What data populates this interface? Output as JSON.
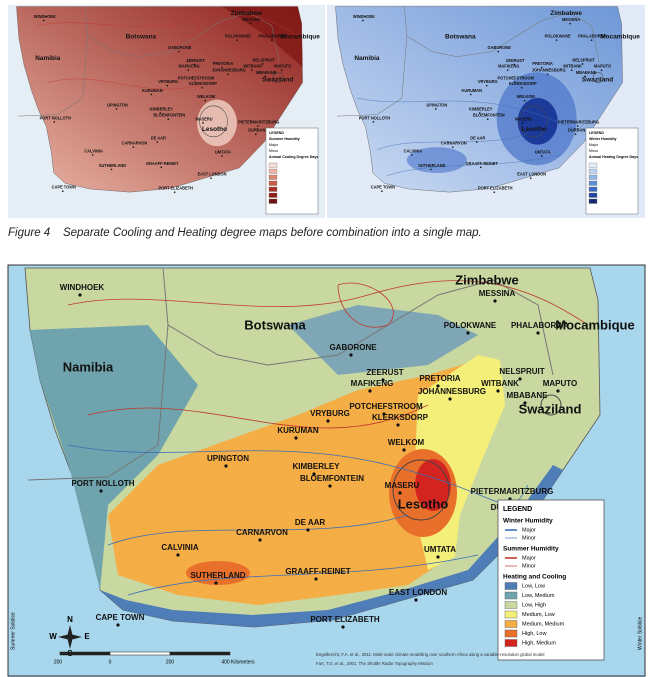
{
  "top_maps": {
    "left": {
      "legend": [
        "LEGEND",
        "Summer Humidity",
        "Major",
        "Minor",
        "Annual Cooling Degree Days"
      ]
    },
    "right": {
      "legend": [
        "LEGEND",
        "Winter Humidity",
        "Major",
        "Minor",
        "Annual Heating Degree Days"
      ]
    }
  },
  "caption": "Figure 4    Separate Cooling and Heating degree maps before combination into a single map.",
  "place_names": [
    "WINDHOEK",
    "Zimbabwe",
    "MESSINA",
    "Botswana",
    "POLOKWANE",
    "PHALABORWA",
    "Mocambique",
    "GABORONE",
    "Namibia",
    "NELSPRUIT",
    "ZEERUST",
    "MAFIKENG",
    "PRETORIA",
    "MAPUTO",
    "JOHANNESBURG",
    "WITBANK",
    "MBABANE",
    "POTCHEFSTROOM",
    "KLERKSDORP",
    "Swaziland",
    "VRYBURG",
    "KURUMAN",
    "WELKOM",
    "UPINGTON",
    "KIMBERLEY",
    "BLOEMFONTEIN",
    "PORT NOLLOTH",
    "MASERU",
    "PIETERMARITZBURG",
    "Lesotho",
    "DURBAN",
    "DE AAR",
    "CARNARVON",
    "CALVINIA",
    "UMTATA",
    "SUTHERLAND",
    "GRAAFF-REINET",
    "EAST LONDON",
    "CAPE TOWN",
    "PORT ELIZABETH"
  ],
  "main_map": {
    "legend": {
      "title": "LEGEND",
      "groups": [
        {
          "title": "Winter Humidity",
          "items": [
            "Major",
            "Minor"
          ]
        },
        {
          "title": "Summer Humidity",
          "items": [
            "Major",
            "Minor"
          ]
        },
        {
          "title": "Heating and Cooling",
          "items": [
            {
              "label": "Low, Low",
              "color": "#4e7db8"
            },
            {
              "label": "Low, Medium",
              "color": "#6fa3ad"
            },
            {
              "label": "Low, High",
              "color": "#c8d8a0"
            },
            {
              "label": "Medium, Low",
              "color": "#f4ef78"
            },
            {
              "label": "Medium, Medium",
              "color": "#f5ad45"
            },
            {
              "label": "High, Low",
              "color": "#e8702a"
            },
            {
              "label": "High, Medium",
              "color": "#d42420"
            }
          ]
        }
      ]
    },
    "compass": [
      "N",
      "E",
      "S",
      "W"
    ],
    "scale": [
      "200",
      "0",
      "200",
      "400 Kilometers"
    ],
    "credits": [
      "Engelbrecht, F.A. et al., 2011. Multi-scale climate modelling over southern Africa using a variable-resolution global model",
      "Farr, T.G. et al., 2001. The Shuttle Radar Topography Mission"
    ],
    "side_labels": [
      "Summer Solstice",
      "Winter Solstice"
    ]
  }
}
